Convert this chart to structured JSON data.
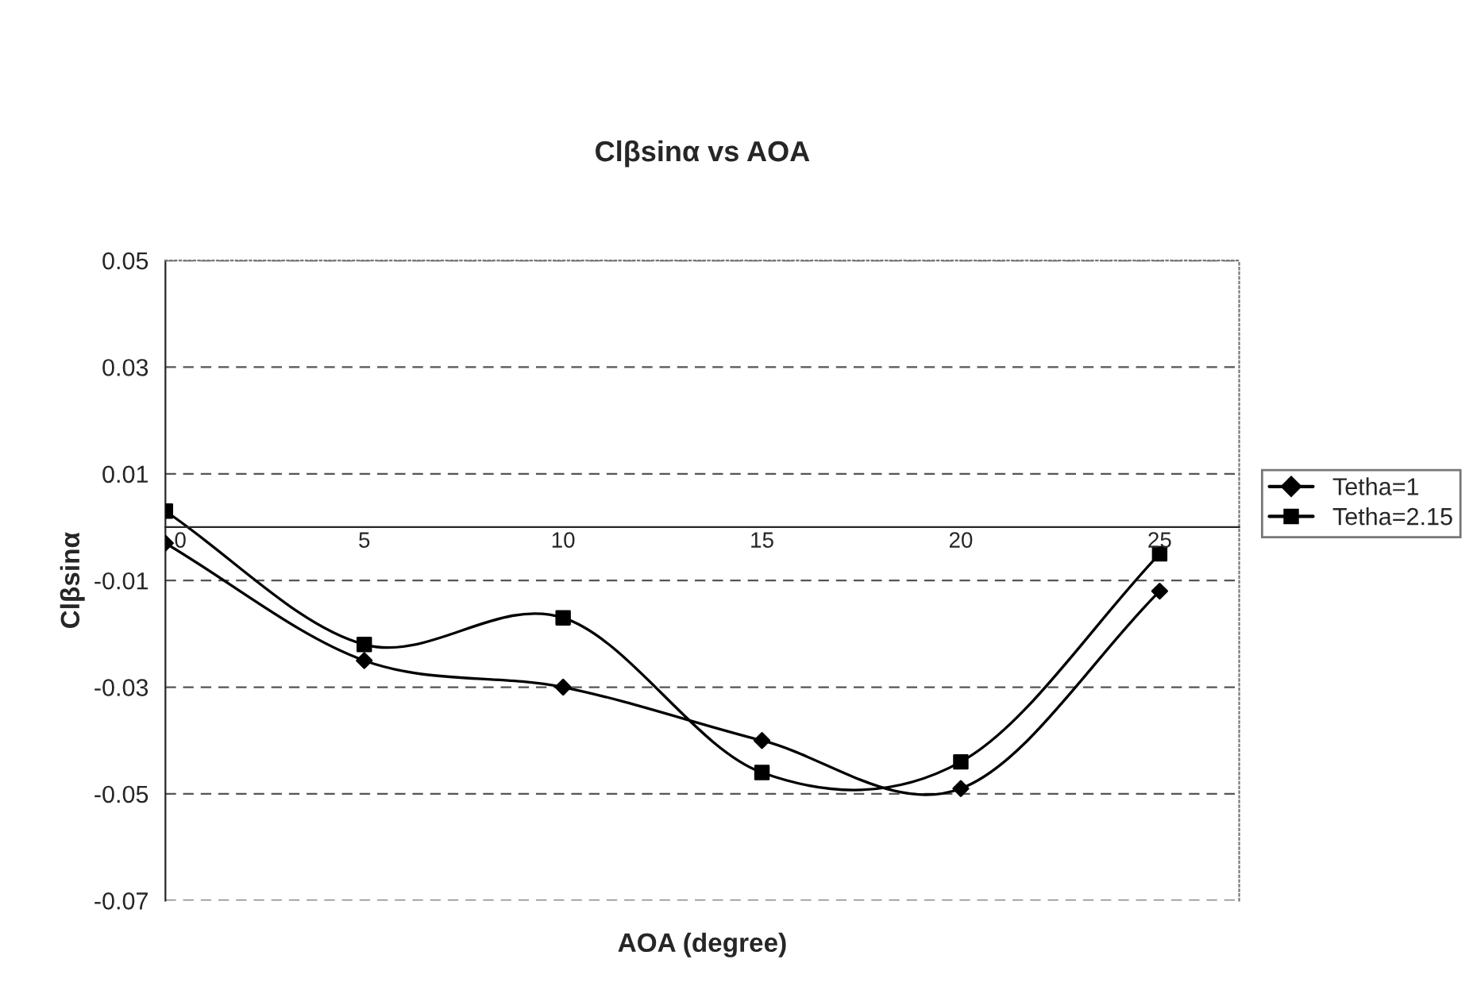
{
  "chart_data": {
    "type": "line",
    "title": "Clβsinα vs AOA",
    "xlabel": "AOA (degree)",
    "ylabel": "Clβsinα",
    "x": [
      0,
      5,
      10,
      15,
      20,
      25
    ],
    "series": [
      {
        "name": "Tetha=1",
        "color": "#000000",
        "marker": "diamond",
        "values": [
          -0.003,
          -0.025,
          -0.03,
          -0.04,
          -0.049,
          -0.012
        ]
      },
      {
        "name": "Tetha=2.15",
        "color": "#000000",
        "marker": "square",
        "values": [
          0.003,
          -0.022,
          -0.017,
          -0.046,
          -0.044,
          -0.005
        ]
      }
    ],
    "xlim": [
      0,
      27
    ],
    "xticks": [
      0,
      5,
      10,
      15,
      20,
      25
    ],
    "ylim": [
      -0.07,
      0.05
    ],
    "yticks": [
      -0.07,
      -0.05,
      -0.03,
      -0.01,
      0.01,
      0.03,
      0.05
    ],
    "grid": "y",
    "legend": "right",
    "line_style": "solid"
  }
}
